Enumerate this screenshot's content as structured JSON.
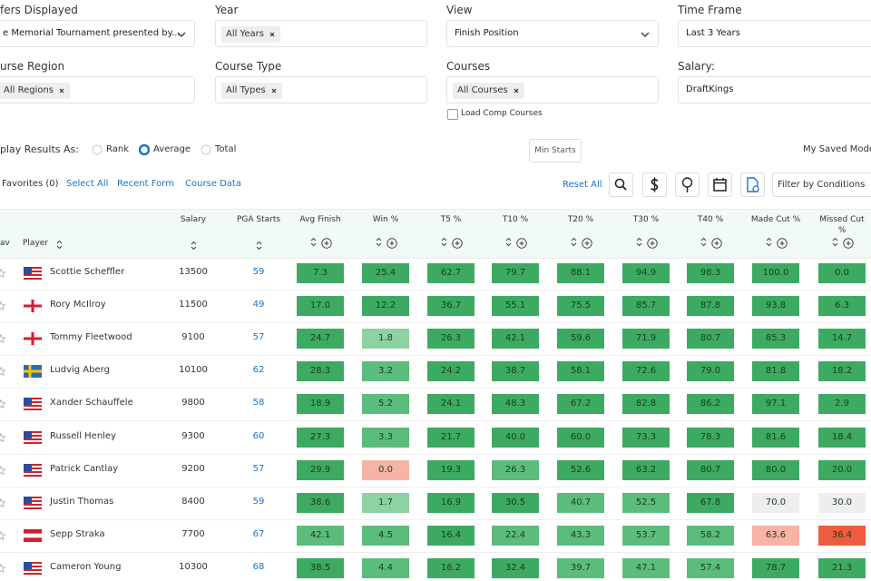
{
  "filters": [
    {
      "label": "fers Displayed",
      "value": "e Memorial Tournament presented by...",
      "dropdown": true
    },
    {
      "label": "Year",
      "tag": "All Years"
    },
    {
      "label": "View",
      "value": "Finish Position",
      "dropdown": true
    },
    {
      "label": "Time Frame",
      "value": "Last 3 Years"
    },
    {
      "label": "urse Region",
      "tag": "All Regions"
    },
    {
      "label": "Course Type",
      "tag": "All Types"
    },
    {
      "label": "Courses",
      "tag": "All Courses"
    },
    {
      "label": "Salary:",
      "value": "DraftKings"
    }
  ],
  "load_comp_courses": "Load Comp Courses",
  "display": {
    "label": "play Results As:",
    "options": [
      "Rank",
      "Average",
      "Total"
    ],
    "selected_index": 1
  },
  "min_starts": "Min Starts",
  "saved_models": "My Saved Mode",
  "toolbar": {
    "favorites": "Favorites (0)",
    "links": [
      "Select All",
      "Recent Form",
      "Course Data"
    ],
    "reset": "Reset All",
    "filter": "Filter by Conditions"
  },
  "table": {
    "columns": [
      "av",
      "Player",
      "Salary",
      "PGA Starts",
      "Avg Finish",
      "Win %",
      "T5 %",
      "T10 %",
      "T20 %",
      "T30 %",
      "T40 %",
      "Made Cut %",
      "Missed Cut %"
    ],
    "rows": [
      {
        "player": "Scottie Scheffler",
        "flag": "us",
        "salary": 13500,
        "pga_starts": 59,
        "stats": [
          "7.3",
          "25.4",
          "62.7",
          "79.7",
          "88.1",
          "94.9",
          "98.3",
          "100.0",
          "0.0"
        ],
        "colors": [
          "#3daa62",
          "#3daa62",
          "#3daa62",
          "#3daa62",
          "#3daa62",
          "#3daa62",
          "#3daa62",
          "#3daa62",
          "#3daa62"
        ]
      },
      {
        "player": "Rory McIlroy",
        "flag": "nir",
        "salary": 11500,
        "pga_starts": 49,
        "stats": [
          "17.0",
          "12.2",
          "36.7",
          "55.1",
          "75.5",
          "85.7",
          "87.8",
          "93.8",
          "6.3"
        ],
        "colors": [
          "#3daa62",
          "#3daa62",
          "#3daa62",
          "#3daa62",
          "#3daa62",
          "#3daa62",
          "#3daa62",
          "#3daa62",
          "#3daa62"
        ]
      },
      {
        "player": "Tommy Fleetwood",
        "flag": "eng",
        "salary": 9100,
        "pga_starts": 57,
        "stats": [
          "24.7",
          "1.8",
          "26.3",
          "42.1",
          "59.6",
          "71.9",
          "80.7",
          "85.3",
          "14.7"
        ],
        "colors": [
          "#3daa62",
          "#8ed2a3",
          "#3daa62",
          "#3daa62",
          "#3daa62",
          "#3daa62",
          "#3daa62",
          "#3daa62",
          "#3daa62"
        ]
      },
      {
        "player": "Ludvig Aberg",
        "flag": "se",
        "salary": 10100,
        "pga_starts": 62,
        "stats": [
          "28.3",
          "3.2",
          "24.2",
          "38.7",
          "58.1",
          "72.6",
          "79.0",
          "81.8",
          "18.2"
        ],
        "colors": [
          "#3daa62",
          "#5cbc7c",
          "#3daa62",
          "#3daa62",
          "#3daa62",
          "#3daa62",
          "#3daa62",
          "#3daa62",
          "#3daa62"
        ]
      },
      {
        "player": "Xander Schauffele",
        "flag": "us",
        "salary": 9800,
        "pga_starts": 58,
        "stats": [
          "18.9",
          "5.2",
          "24.1",
          "48.3",
          "67.2",
          "82.8",
          "86.2",
          "97.1",
          "2.9"
        ],
        "colors": [
          "#3daa62",
          "#5cbc7c",
          "#3daa62",
          "#3daa62",
          "#3daa62",
          "#3daa62",
          "#3daa62",
          "#3daa62",
          "#3daa62"
        ]
      },
      {
        "player": "Russell Henley",
        "flag": "us",
        "salary": 9300,
        "pga_starts": 60,
        "stats": [
          "27.3",
          "3.3",
          "21.7",
          "40.0",
          "60.0",
          "73.3",
          "78.3",
          "81.6",
          "18.4"
        ],
        "colors": [
          "#3daa62",
          "#5cbc7c",
          "#3daa62",
          "#3daa62",
          "#3daa62",
          "#3daa62",
          "#3daa62",
          "#3daa62",
          "#3daa62"
        ]
      },
      {
        "player": "Patrick Cantlay",
        "flag": "us",
        "salary": 9200,
        "pga_starts": 57,
        "stats": [
          "29.9",
          "0.0",
          "19.3",
          "26.3",
          "52.6",
          "63.2",
          "80.7",
          "80.0",
          "20.0"
        ],
        "colors": [
          "#3daa62",
          "#f7b3a3",
          "#3daa62",
          "#5cbc7c",
          "#3daa62",
          "#3daa62",
          "#3daa62",
          "#3daa62",
          "#3daa62"
        ]
      },
      {
        "player": "Justin Thomas",
        "flag": "us",
        "salary": 8400,
        "pga_starts": 59,
        "stats": [
          "38.6",
          "1.7",
          "16.9",
          "30.5",
          "40.7",
          "52.5",
          "67.8",
          "70.0",
          "30.0"
        ],
        "colors": [
          "#3daa62",
          "#8ed2a3",
          "#3daa62",
          "#3daa62",
          "#5cbc7c",
          "#5cbc7c",
          "#3daa62",
          "#eeeeee",
          "#eeeeee"
        ]
      },
      {
        "player": "Sepp Straka",
        "flag": "at",
        "salary": 7700,
        "pga_starts": 67,
        "stats": [
          "42.1",
          "4.5",
          "16.4",
          "22.4",
          "43.3",
          "53.7",
          "58.2",
          "63.6",
          "36.4"
        ],
        "colors": [
          "#5cbc7c",
          "#5cbc7c",
          "#3daa62",
          "#5cbc7c",
          "#5cbc7c",
          "#5cbc7c",
          "#5cbc7c",
          "#f7b3a3",
          "#ef5b3d"
        ]
      },
      {
        "player": "Cameron Young",
        "flag": "us",
        "salary": 10300,
        "pga_starts": 68,
        "stats": [
          "38.5",
          "4.4",
          "16.2",
          "32.4",
          "39.7",
          "47.1",
          "57.4",
          "78.7",
          "21.3"
        ],
        "colors": [
          "#3daa62",
          "#5cbc7c",
          "#3daa62",
          "#3daa62",
          "#5cbc7c",
          "#5cbc7c",
          "#5cbc7c",
          "#3daa62",
          "#3daa62"
        ]
      }
    ]
  }
}
